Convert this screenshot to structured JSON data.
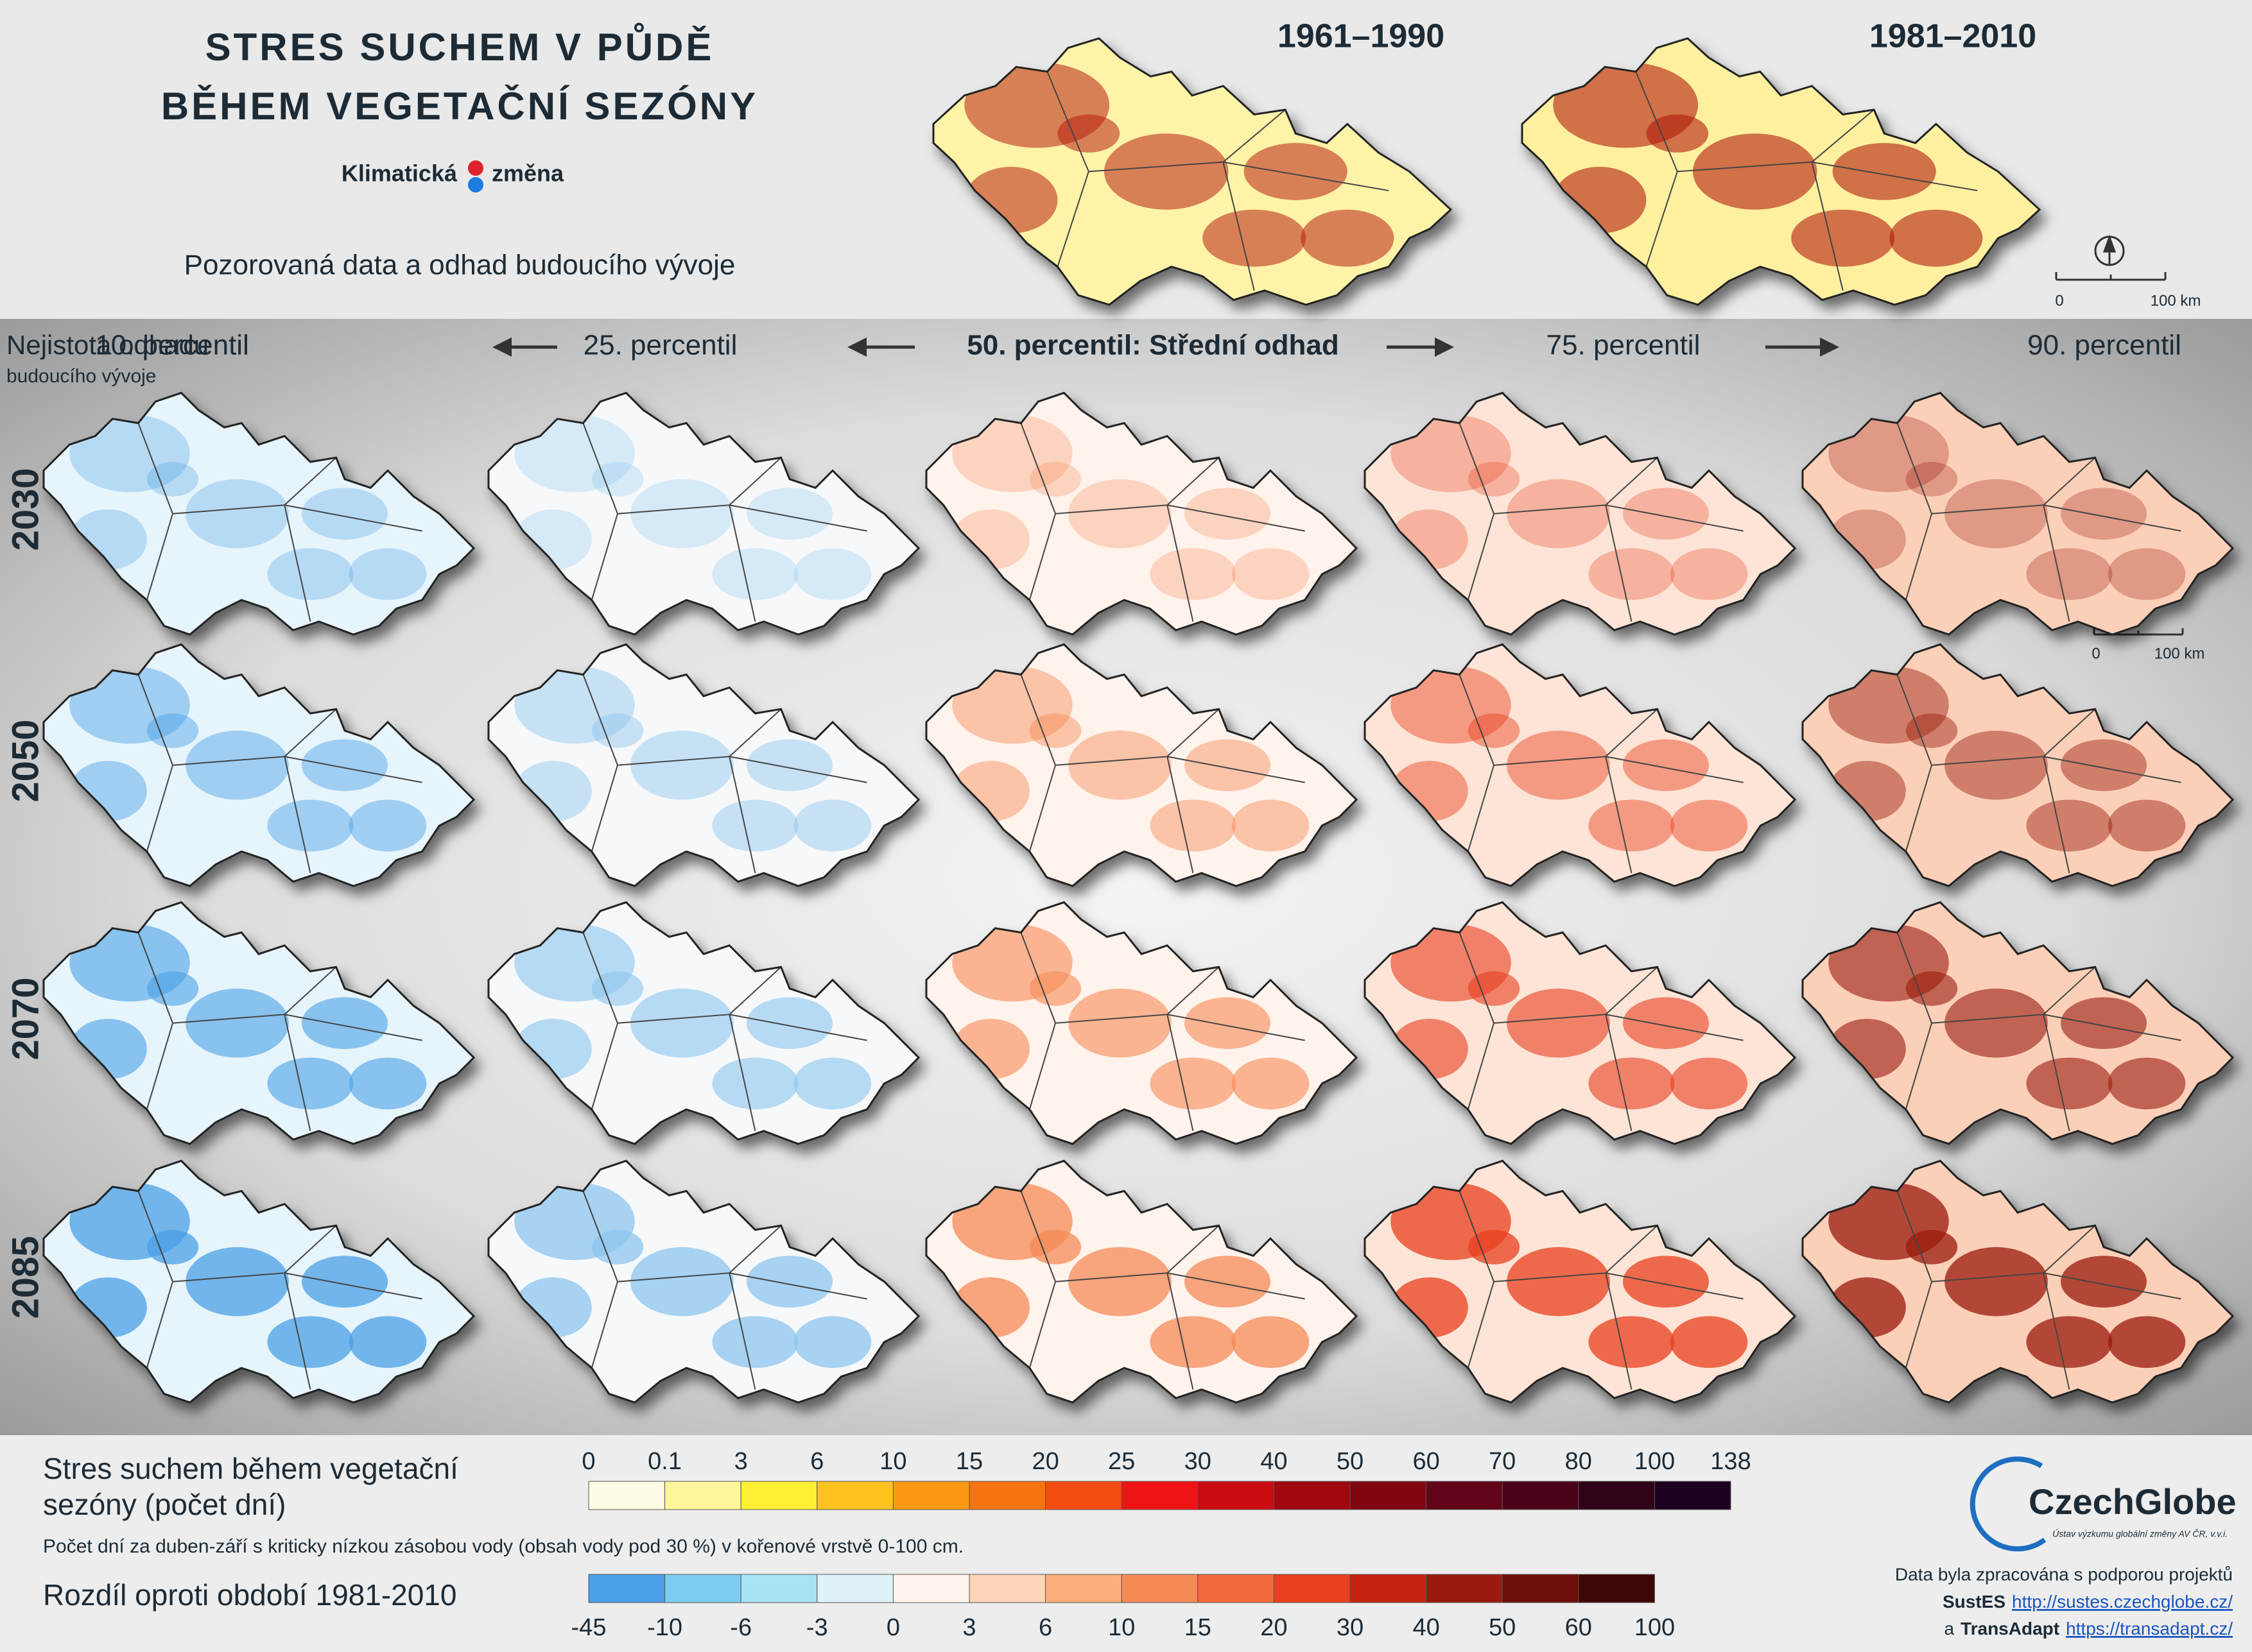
{
  "header": {
    "title_line1": "STRES SUCHEM V PŮDĚ",
    "title_line2": "BĚHEM VEGETAČNÍ SEZÓNY",
    "logo_left": "Klimatická",
    "logo_right": "změna",
    "subtitle": "Pozorovaná data a odhad budoucího vývoje"
  },
  "observed": [
    "1961–1990",
    "1981–2010"
  ],
  "scale_bar": {
    "zero": "0",
    "length": "100 km"
  },
  "uncertainty": {
    "line1": "Nejistota odhadu",
    "line2": "budoucího vývoje"
  },
  "percentiles": [
    "10. percentil",
    "25. percentil",
    "50. percentil: Střední odhad",
    "75. percentil",
    "90. percentil"
  ],
  "years": [
    "2030",
    "2050",
    "2070",
    "2085"
  ],
  "legend_absolute": {
    "title_line1": "Stres suchem během vegetační",
    "title_line2": "sezóny (počet dní)",
    "note": "Počet dní za duben-září s kriticky nízkou zásobou vody (obsah vody pod 30 %) v kořenové vrstvě 0-100 cm.",
    "labels": [
      0,
      0.1,
      3,
      6,
      10,
      15,
      20,
      25,
      30,
      40,
      50,
      60,
      70,
      80,
      100,
      138
    ],
    "colors": [
      "#fffbe4",
      "#fff59a",
      "#fff033",
      "#ffc21e",
      "#fb9a12",
      "#f5740f",
      "#f24c10",
      "#ee1414",
      "#c80c10",
      "#a0080f",
      "#800612",
      "#620418",
      "#4a0418",
      "#300318",
      "#1c0220"
    ]
  },
  "legend_difference": {
    "title": "Rozdíl oproti období 1981-2010",
    "labels": [
      -45,
      -10,
      -6,
      -3,
      0,
      3,
      6,
      10,
      15,
      20,
      30,
      40,
      50,
      60,
      100
    ],
    "colors": [
      "#4aa0e6",
      "#7ccdef",
      "#a8e2f5",
      "#def2f8",
      "#fff5ef",
      "#fdd5b8",
      "#fbb07c",
      "#f68a55",
      "#f16a3c",
      "#e8401e",
      "#c42410",
      "#9a1a0e",
      "#6e0e08",
      "#3e0604"
    ]
  },
  "footer": {
    "brand": "CzechGlobe",
    "institute": "Ústav výzkumu globální změny AV ČR, v.v.i.",
    "credit": "Data byla zpracována s podporou projektů",
    "project1_name": "SustES",
    "project1_url": "http://sustes.czechglobe.cz/",
    "project2_prefix": "a",
    "project2_name": "TransAdapt",
    "project2_url": "https://transadapt.cz/"
  }
}
